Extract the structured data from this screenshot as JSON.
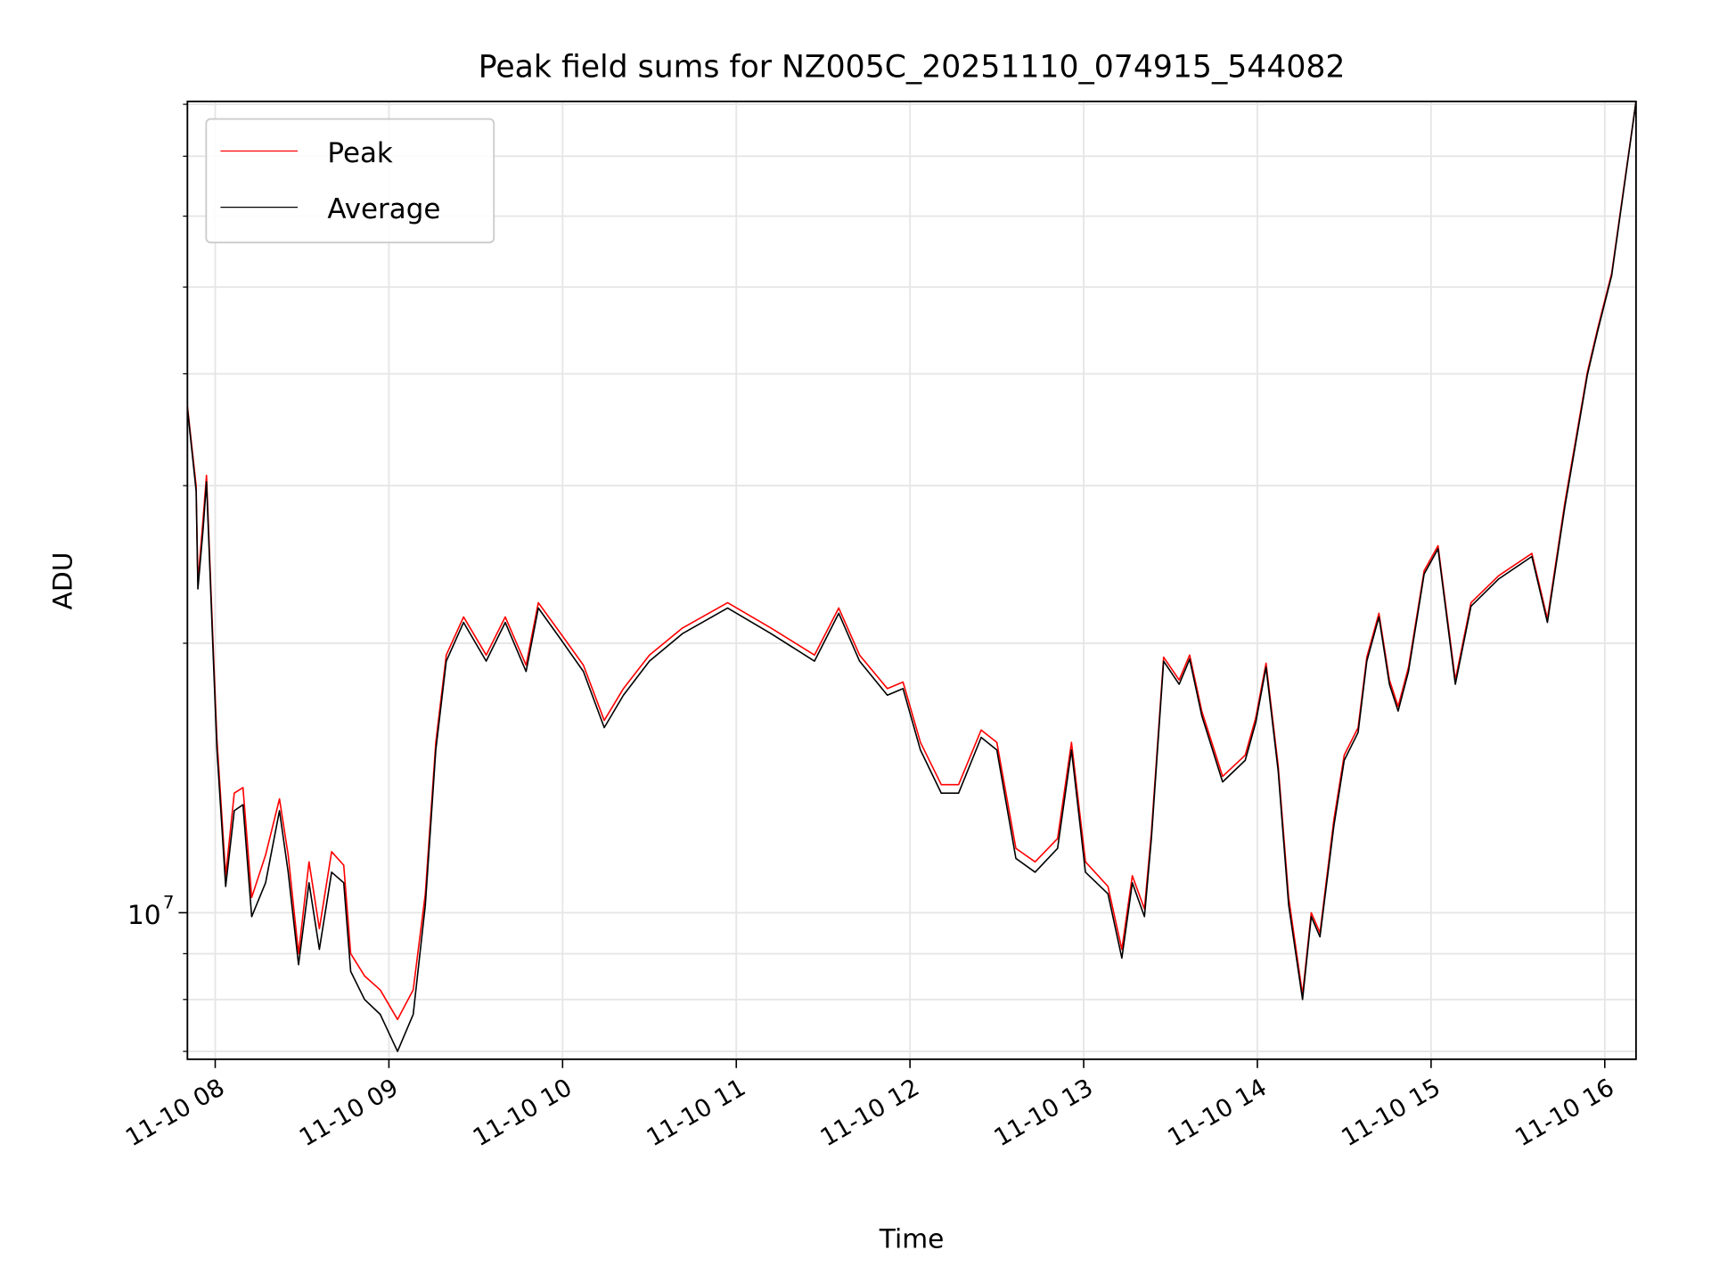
{
  "chart_data": {
    "type": "line",
    "title": "Peak field sums for NZ005C_20251110_074915_544082",
    "xlabel": "Time",
    "ylabel": "ADU",
    "yscale": "log",
    "ylim": [
      6860000.0,
      80600000.0
    ],
    "xlim_hours": [
      7.84,
      16.18
    ],
    "grid": true,
    "legend_position": "top-left",
    "x_ticks": [
      {
        "hour": 8,
        "label": "11-10 08"
      },
      {
        "hour": 9,
        "label": "11-10 09"
      },
      {
        "hour": 10,
        "label": "11-10 10"
      },
      {
        "hour": 11,
        "label": "11-10 11"
      },
      {
        "hour": 12,
        "label": "11-10 12"
      },
      {
        "hour": 13,
        "label": "11-10 13"
      },
      {
        "hour": 14,
        "label": "11-10 14"
      },
      {
        "hour": 15,
        "label": "11-10 15"
      },
      {
        "hour": 16,
        "label": "11-10 16"
      }
    ],
    "y_major_ticks": [
      {
        "value": 10000000.0,
        "base": "10",
        "exp": "7"
      }
    ],
    "y_minor_ticks": [
      7000000.0,
      8000000.0,
      9000000.0,
      20000000.0,
      30000000.0,
      40000000.0,
      50000000.0,
      60000000.0,
      70000000.0,
      80000000.0
    ],
    "x_hours": [
      7.84,
      7.89,
      7.9,
      7.93,
      7.95,
      7.99,
      8.01,
      8.06,
      8.11,
      8.16,
      8.21,
      8.29,
      8.37,
      8.42,
      8.48,
      8.54,
      8.6,
      8.67,
      8.74,
      8.78,
      8.86,
      8.95,
      9.05,
      9.14,
      9.21,
      9.27,
      9.33,
      9.43,
      9.56,
      9.67,
      9.79,
      9.86,
      9.99,
      10.12,
      10.24,
      10.35,
      10.5,
      10.69,
      10.95,
      11.2,
      11.45,
      11.59,
      11.71,
      11.87,
      11.96,
      12.06,
      12.18,
      12.28,
      12.41,
      12.5,
      12.61,
      12.72,
      12.85,
      12.93,
      13.01,
      13.14,
      13.22,
      13.28,
      13.35,
      13.39,
      13.46,
      13.55,
      13.61,
      13.68,
      13.8,
      13.93,
      13.99,
      14.05,
      14.12,
      14.18,
      14.26,
      14.31,
      14.36,
      14.44,
      14.5,
      14.58,
      14.63,
      14.7,
      14.76,
      14.81,
      14.87,
      14.96,
      15.04,
      15.14,
      15.23,
      15.39,
      15.58,
      15.67,
      15.77,
      15.9,
      15.96,
      16.04,
      16.12,
      16.18
    ],
    "series": [
      {
        "name": "Peak",
        "color": "#ff0000",
        "values": [
          36800000.0,
          30000000.0,
          23400000.0,
          27500000.0,
          30800000.0,
          19500000.0,
          15600000.0,
          11000000.0,
          13600000.0,
          13800000.0,
          10400000.0,
          11600000.0,
          13400000.0,
          11600000.0,
          9000000.0,
          11400000.0,
          9600000.0,
          11700000.0,
          11300000.0,
          9000000.0,
          8500000.0,
          8200000.0,
          7600000.0,
          8200000.0,
          10500000.0,
          15500000.0,
          19400000.0,
          21400000.0,
          19400000.0,
          21400000.0,
          18900000.0,
          22200000.0,
          20500000.0,
          18900000.0,
          16400000.0,
          17800000.0,
          19400000.0,
          20800000.0,
          22200000.0,
          20800000.0,
          19400000.0,
          21900000.0,
          19400000.0,
          17800000.0,
          18100000.0,
          15500000.0,
          13900000.0,
          13900000.0,
          16000000.0,
          15500000.0,
          11800000.0,
          11400000.0,
          12100000.0,
          15500000.0,
          11400000.0,
          10700000.0,
          9100000.0,
          11000000.0,
          10100000.0,
          12300000.0,
          19300000.0,
          18200000.0,
          19400000.0,
          16800000.0,
          14200000.0,
          15000000.0,
          16500000.0,
          19000000.0,
          14600000.0,
          10400000.0,
          8100000.0,
          10000000.0,
          9500000.0,
          12700000.0,
          15000000.0,
          16100000.0,
          19300000.0,
          21600000.0,
          18200000.0,
          17000000.0,
          18800000.0,
          24100000.0,
          25700000.0,
          18200000.0,
          22200000.0,
          23800000.0,
          25200000.0,
          21300000.0,
          28700000.0,
          40200000.0,
          45000000.0,
          51800000.0,
          66700000.0,
          80600000.0
        ]
      },
      {
        "name": "Average",
        "color": "#000000",
        "values": [
          36600000.0,
          29600000.0,
          23000000.0,
          26800000.0,
          30300000.0,
          19100000.0,
          15200000.0,
          10700000.0,
          13000000.0,
          13200000.0,
          9900000.0,
          10800000.0,
          13000000.0,
          11100000.0,
          8750000.0,
          10800000.0,
          9100000.0,
          11100000.0,
          10800000.0,
          8600000.0,
          8000000.0,
          7700000.0,
          7000000.0,
          7700000.0,
          10200000.0,
          15200000.0,
          19100000.0,
          21100000.0,
          19100000.0,
          21100000.0,
          18600000.0,
          21900000.0,
          20200000.0,
          18600000.0,
          16100000.0,
          17500000.0,
          19100000.0,
          20500000.0,
          21900000.0,
          20500000.0,
          19100000.0,
          21600000.0,
          19100000.0,
          17500000.0,
          17800000.0,
          15200000.0,
          13600000.0,
          13600000.0,
          15700000.0,
          15200000.0,
          11500000.0,
          11100000.0,
          11800000.0,
          15200000.0,
          11100000.0,
          10500000.0,
          8900000.0,
          10800000.0,
          9900000.0,
          12100000.0,
          19100000.0,
          18000000.0,
          19200000.0,
          16600000.0,
          14000000.0,
          14800000.0,
          16300000.0,
          18800000.0,
          14400000.0,
          10200000.0,
          8000000.0,
          9900000.0,
          9400000.0,
          12500000.0,
          14800000.0,
          15900000.0,
          19100000.0,
          21400000.0,
          18000000.0,
          16800000.0,
          18600000.0,
          23900000.0,
          25500000.0,
          18000000.0,
          22000000.0,
          23600000.0,
          25000000.0,
          21100000.0,
          28400000.0,
          39900000.0,
          44700000.0,
          51500000.0,
          66400000.0,
          80600000.0
        ]
      }
    ]
  }
}
